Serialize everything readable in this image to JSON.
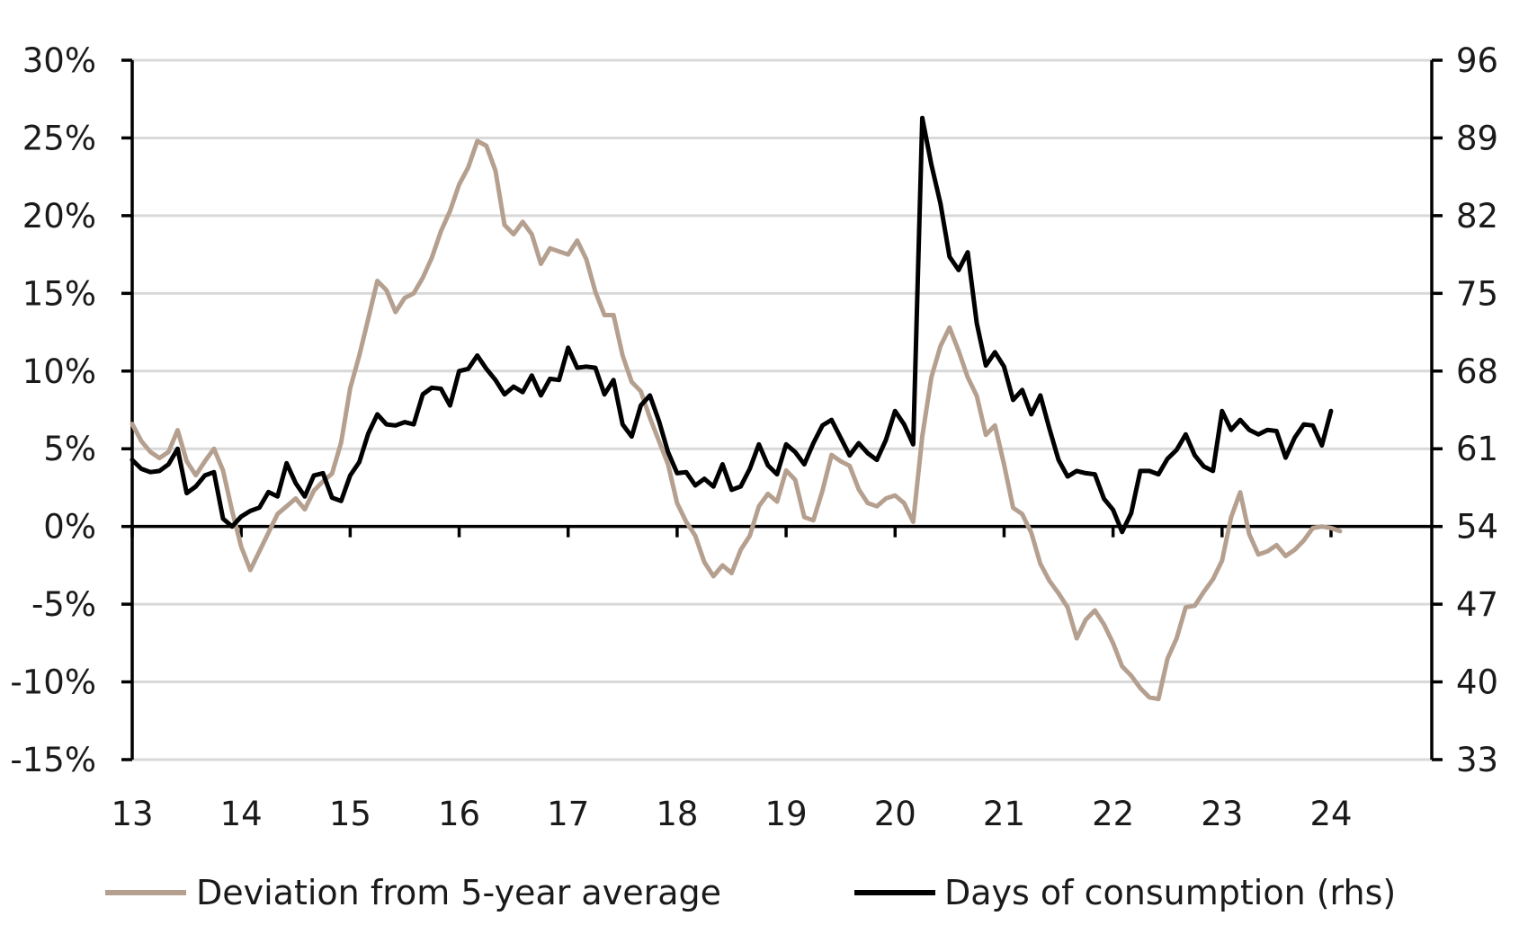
{
  "chart_data": {
    "type": "line",
    "title": "",
    "xlabel": "",
    "ylabel": "",
    "y2label": "",
    "x_tick_labels": [
      "13",
      "14",
      "15",
      "16",
      "17",
      "18",
      "19",
      "20",
      "21",
      "22",
      "23",
      "24"
    ],
    "y_left": {
      "min": -15,
      "max": 30,
      "step": 5,
      "tick_labels": [
        "30%",
        "25%",
        "20%",
        "15%",
        "10%",
        "5%",
        "0%",
        "-5%",
        "-10%",
        "-15%"
      ]
    },
    "y_right": {
      "min": 33,
      "max": 96,
      "step": 7,
      "tick_labels": [
        "96",
        "89",
        "82",
        "75",
        "68",
        "61",
        "54",
        "47",
        "40",
        "33"
      ]
    },
    "grid": {
      "horizontal": true,
      "vertical": false
    },
    "legend_position": "bottom",
    "colors": {
      "deviation": "#b5a090",
      "days": "#000000",
      "grid": "#d9d9d9"
    },
    "series": [
      {
        "name": "Deviation from 5-year average",
        "axis": "left",
        "x_start": 2013.0,
        "x_step": 0.08333,
        "values": [
          6.6,
          5.5,
          4.8,
          4.4,
          4.8,
          6.2,
          4.2,
          3.3,
          4.2,
          5.0,
          3.6,
          1.0,
          -1.3,
          -2.8,
          -1.6,
          -0.4,
          0.8,
          1.3,
          1.8,
          1.1,
          2.3,
          2.9,
          3.4,
          5.4,
          8.9,
          11.0,
          13.4,
          15.8,
          15.2,
          13.8,
          14.7,
          15.0,
          16.0,
          17.3,
          19.0,
          20.3,
          22.0,
          23.1,
          24.8,
          24.5,
          22.9,
          19.4,
          18.8,
          19.6,
          18.8,
          16.9,
          17.9,
          17.7,
          17.5,
          18.4,
          17.2,
          15.1,
          13.6,
          13.6,
          11.0,
          9.3,
          8.7,
          7.0,
          5.5,
          4.0,
          1.5,
          0.3,
          -0.6,
          -2.3,
          -3.2,
          -2.5,
          -3.0,
          -1.5,
          -0.6,
          1.3,
          2.1,
          1.6,
          3.6,
          3.0,
          0.6,
          0.4,
          2.3,
          4.6,
          4.2,
          3.9,
          2.4,
          1.5,
          1.3,
          1.8,
          2.0,
          1.5,
          0.3,
          5.8,
          9.6,
          11.6,
          12.8,
          11.3,
          9.6,
          8.4,
          5.9,
          6.5,
          4.0,
          1.2,
          0.8,
          -0.4,
          -2.4,
          -3.5,
          -4.3,
          -5.2,
          -7.2,
          -6.0,
          -5.4,
          -6.3,
          -7.5,
          -9.0,
          -9.6,
          -10.4,
          -11.0,
          -11.1,
          -8.5,
          -7.2,
          -5.2,
          -5.1,
          -4.2,
          -3.4,
          -2.2,
          0.6,
          2.2,
          -0.5,
          -1.8,
          -1.6,
          -1.2,
          -1.9,
          -1.5,
          -0.9,
          -0.1,
          0.0,
          -0.1,
          -0.3
        ]
      },
      {
        "name": "Days of consumption (rhs)",
        "axis": "right",
        "x_start": 2013.0,
        "x_step": 0.08333,
        "values": [
          60.0,
          59.2,
          58.9,
          59.0,
          59.6,
          61.0,
          57.0,
          57.6,
          58.6,
          58.9,
          54.7,
          54.0,
          54.9,
          55.4,
          55.7,
          57.1,
          56.7,
          59.7,
          57.9,
          56.7,
          58.6,
          58.8,
          56.6,
          56.3,
          58.6,
          59.8,
          62.4,
          64.1,
          63.2,
          63.1,
          63.4,
          63.2,
          65.9,
          66.5,
          66.4,
          64.9,
          68.0,
          68.2,
          69.4,
          68.2,
          67.2,
          65.9,
          66.6,
          66.1,
          67.6,
          65.8,
          67.3,
          67.2,
          70.1,
          68.3,
          68.4,
          68.3,
          65.9,
          67.2,
          63.2,
          62.1,
          64.9,
          65.8,
          63.5,
          60.7,
          58.8,
          58.9,
          57.7,
          58.3,
          57.6,
          59.6,
          57.3,
          57.6,
          59.2,
          61.4,
          59.5,
          58.7,
          61.4,
          60.7,
          59.6,
          61.5,
          63.1,
          63.6,
          62.0,
          60.4,
          61.5,
          60.6,
          60.0,
          61.8,
          64.4,
          63.2,
          61.4,
          90.8,
          86.6,
          83.1,
          78.3,
          77.1,
          78.7,
          72.3,
          68.5,
          69.7,
          68.4,
          65.4,
          66.3,
          64.1,
          65.8,
          62.8,
          60.0,
          58.5,
          59.0,
          58.8,
          58.7,
          56.5,
          55.5,
          53.5,
          55.2,
          59.0,
          59.0,
          58.7,
          60.1,
          60.9,
          62.3,
          60.4,
          59.4,
          59.0,
          64.4,
          62.7,
          63.6,
          62.7,
          62.3,
          62.7,
          62.6,
          60.2,
          62.0,
          63.2,
          63.1,
          61.3,
          64.4
        ]
      }
    ]
  }
}
